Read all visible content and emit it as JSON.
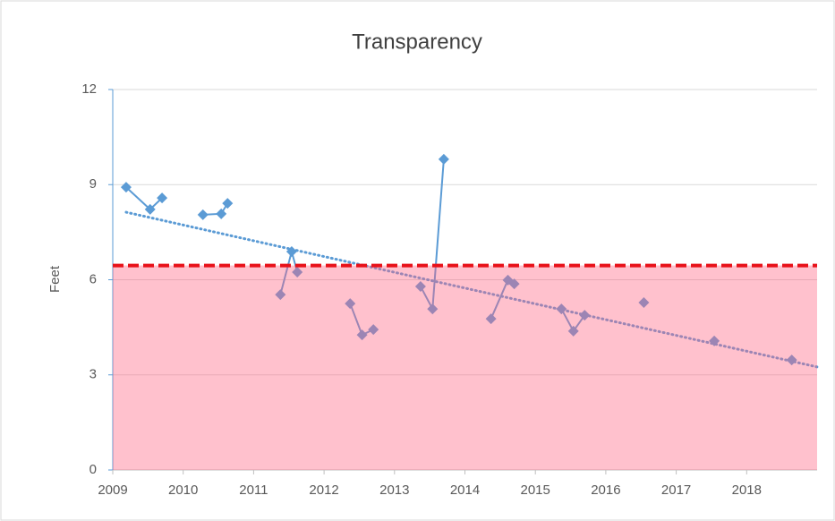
{
  "chart_data": {
    "type": "line",
    "title": "Transparency",
    "y_label": "Feet",
    "xlim": [
      2009,
      2019
    ],
    "xticks": [
      2009,
      2010,
      2011,
      2012,
      2013,
      2014,
      2015,
      2016,
      2017,
      2018
    ],
    "ylim": [
      0,
      12
    ],
    "yticks": [
      0,
      3,
      6,
      9,
      12
    ],
    "grid": true,
    "series": [
      {
        "color": "#5b9bd5",
        "x": [
          2009.19,
          2009.53,
          2009.7,
          null,
          2010.28,
          2010.54,
          2010.63,
          null,
          2011.38,
          2011.54,
          2011.62,
          null,
          2012.37,
          2012.54,
          2012.7,
          null,
          2013.37,
          2013.54,
          2013.7,
          null,
          2014.37,
          2014.61,
          2014.7,
          null,
          2015.37,
          2015.54,
          2015.7,
          null,
          2016.54,
          null,
          2017.54,
          null,
          2018.64
        ],
        "values": [
          8.92,
          8.22,
          8.58,
          null,
          8.05,
          8.08,
          8.41,
          null,
          5.53,
          6.89,
          6.24,
          null,
          5.25,
          4.26,
          4.43,
          null,
          5.79,
          5.08,
          9.8,
          null,
          4.77,
          5.99,
          5.87,
          null,
          5.08,
          4.38,
          4.88,
          null,
          5.28,
          null,
          4.07,
          null,
          3.47
        ]
      }
    ],
    "trend": {
      "color": "#5b9bd5",
      "x": [
        2009.19,
        2019
      ],
      "values": [
        8.13,
        3.25
      ]
    },
    "threshold": {
      "value": 6.45,
      "color": "#e8121a",
      "fill": "#ff6482"
    }
  }
}
